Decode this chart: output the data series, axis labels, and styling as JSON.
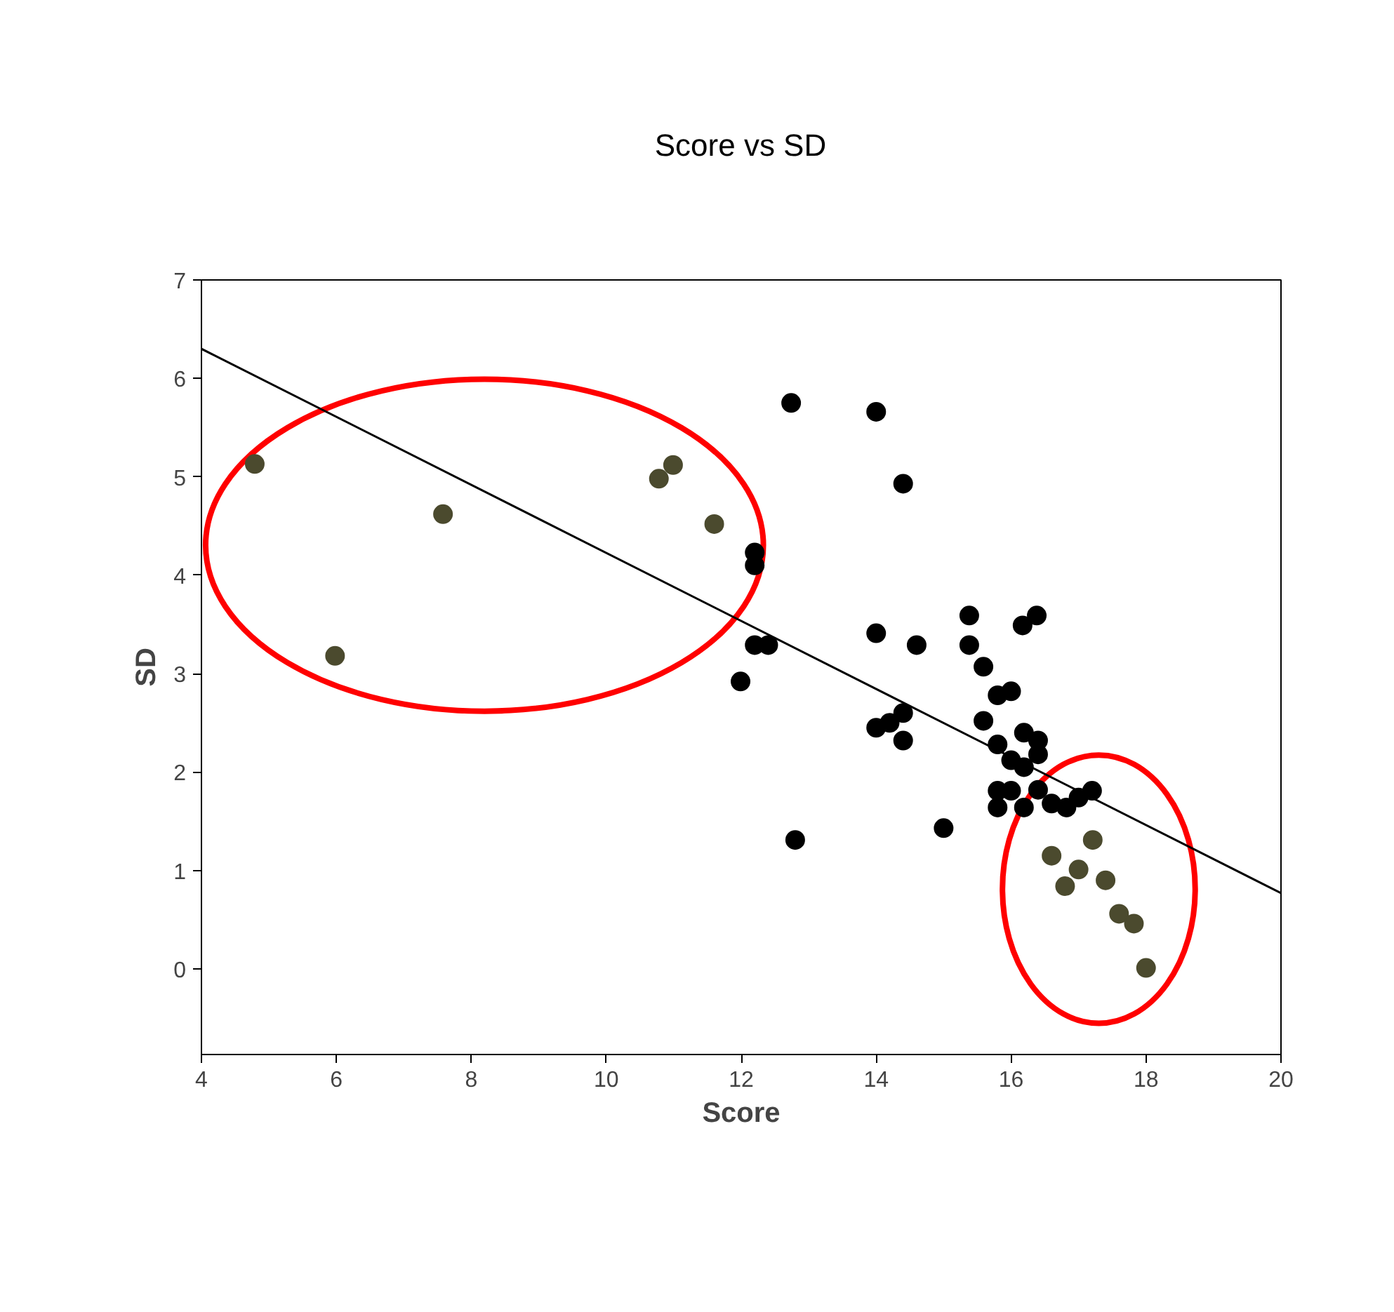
{
  "chart_data": {
    "type": "scatter",
    "title": "Score vs SD",
    "xlabel": "Score",
    "ylabel": "SD",
    "xlim": [
      4,
      20
    ],
    "ylim": [
      -0.87,
      7
    ],
    "xticks": [
      4,
      6,
      8,
      10,
      12,
      14,
      16,
      18,
      20
    ],
    "yticks": [
      0,
      1,
      2,
      3,
      4,
      5,
      6,
      7
    ],
    "grid": false,
    "marker": "circle",
    "series": [
      {
        "color": "#000000",
        "x": [
          12.74,
          14.0,
          14.4,
          12.2,
          12.2,
          12.2,
          12.4,
          11.99,
          12.8,
          14.0,
          14.6,
          15.38,
          15.38,
          15.59,
          16.17,
          16.38,
          15.59,
          15.8,
          16.0,
          14.0,
          14.2,
          14.4,
          14.4,
          15.8,
          16.0,
          16.19,
          16.19,
          16.4,
          16.4,
          15.8,
          16.0,
          15.8,
          16.19,
          16.4,
          16.6,
          16.82,
          17.0,
          17.2,
          15.0
        ],
        "values": [
          5.75,
          5.66,
          4.93,
          4.23,
          4.1,
          3.29,
          3.29,
          2.92,
          1.31,
          3.41,
          3.29,
          3.59,
          3.29,
          3.07,
          3.49,
          3.59,
          2.52,
          2.78,
          2.82,
          2.45,
          2.5,
          2.6,
          2.32,
          2.28,
          2.12,
          2.05,
          2.4,
          2.32,
          2.18,
          1.81,
          1.81,
          1.64,
          1.64,
          1.82,
          1.68,
          1.64,
          1.74,
          1.81,
          1.43
        ]
      },
      {
        "color": "#4b4a2e",
        "x": [
          4.79,
          5.98,
          7.58,
          10.78,
          10.99,
          11.6
        ],
        "values": [
          5.13,
          3.18,
          4.62,
          4.98,
          5.12,
          4.52
        ]
      },
      {
        "color": "#4b4a2e",
        "x": [
          17.21,
          16.6,
          17.0,
          16.8,
          17.4,
          17.6,
          17.82,
          18.0
        ],
        "values": [
          1.31,
          1.15,
          1.01,
          0.84,
          0.9,
          0.56,
          0.46,
          0.01
        ]
      },
      {
        "type": "line",
        "marker": "none",
        "color": "#000000",
        "x": [
          4,
          20
        ],
        "values": [
          6.3,
          0.77
        ]
      }
    ]
  }
}
